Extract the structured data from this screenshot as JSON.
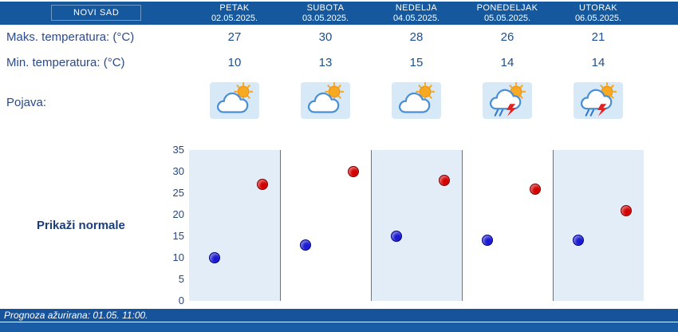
{
  "header": {
    "location": "NOVI SAD",
    "days": [
      {
        "name": "PETAK",
        "date": "02.05.2025."
      },
      {
        "name": "SUBOTA",
        "date": "03.05.2025."
      },
      {
        "name": "NEDELJA",
        "date": "04.05.2025."
      },
      {
        "name": "PONEDELJAK",
        "date": "05.05.2025."
      },
      {
        "name": "UTORAK",
        "date": "06.05.2025."
      }
    ]
  },
  "rows": {
    "max_label": "Maks. temperatura: (°C)",
    "min_label": "Min. temperatura: (°C)",
    "pojava_label": "Pojava:",
    "max_values": [
      27,
      30,
      28,
      26,
      21
    ],
    "min_values": [
      10,
      13,
      15,
      14,
      14
    ],
    "icons": [
      "partly-cloudy-icon",
      "partly-cloudy-icon",
      "partly-cloudy-icon",
      "thunderstorm-rain-icon",
      "thunderstorm-rain-icon"
    ]
  },
  "controls": {
    "show_normals_label": "Prikaži normale"
  },
  "chart_data": {
    "type": "scatter",
    "categories": [
      "PETAK",
      "SUBOTA",
      "NEDELJA",
      "PONEDELJAK",
      "UTORAK"
    ],
    "series": [
      {
        "name": "Maks. temperatura (°C)",
        "color": "#d40000",
        "values": [
          27,
          30,
          28,
          26,
          21
        ]
      },
      {
        "name": "Min. temperatura (°C)",
        "color": "#1a1ad0",
        "values": [
          10,
          13,
          15,
          14,
          14
        ]
      }
    ],
    "ylim": [
      0,
      35
    ],
    "yticks": [
      0,
      5,
      10,
      15,
      20,
      25,
      30,
      35
    ],
    "grid": "vertical-dividers",
    "legend": "none",
    "band_color": "#e2edf8",
    "divider_color": "#4a7bb0"
  },
  "footer": {
    "updated": "Prognoza ažurirana:  01.05. 11:00."
  },
  "colors": {
    "header_bar": "#15589d",
    "footer_bar": "#17539a",
    "text_navy": "#2a4a8c",
    "icon_bg": "#d7e8f7"
  }
}
